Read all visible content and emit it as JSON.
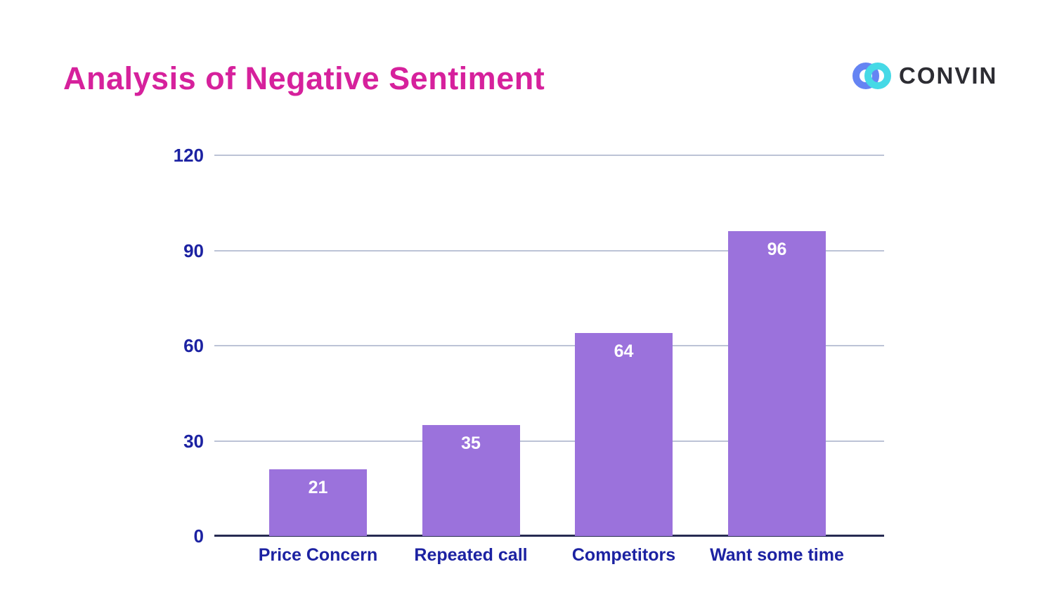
{
  "header": {
    "title": "Analysis of Negative Sentiment",
    "title_color": "#d6219c",
    "logo": {
      "text": "CONVIN",
      "ring_left_color": "#6584f3",
      "ring_right_color": "#46d9e6",
      "text_color": "#2d2d33"
    }
  },
  "chart_data": {
    "type": "bar",
    "title": "Analysis of Negative Sentiment",
    "categories": [
      "Price Concern",
      "Repeated call",
      "Competitors",
      "Want some time"
    ],
    "values": [
      21,
      35,
      64,
      96
    ],
    "xlabel": "",
    "ylabel": "",
    "ylim": [
      0,
      120
    ],
    "yticks": [
      0,
      30,
      60,
      90,
      120
    ],
    "grid": true,
    "legend": false,
    "bar_color": "#9b72dc",
    "value_label_color": "#ffffff",
    "tick_label_color": "#1c22a2",
    "gridline_color": "#bcc3d6",
    "baseline_color": "#272b52"
  }
}
